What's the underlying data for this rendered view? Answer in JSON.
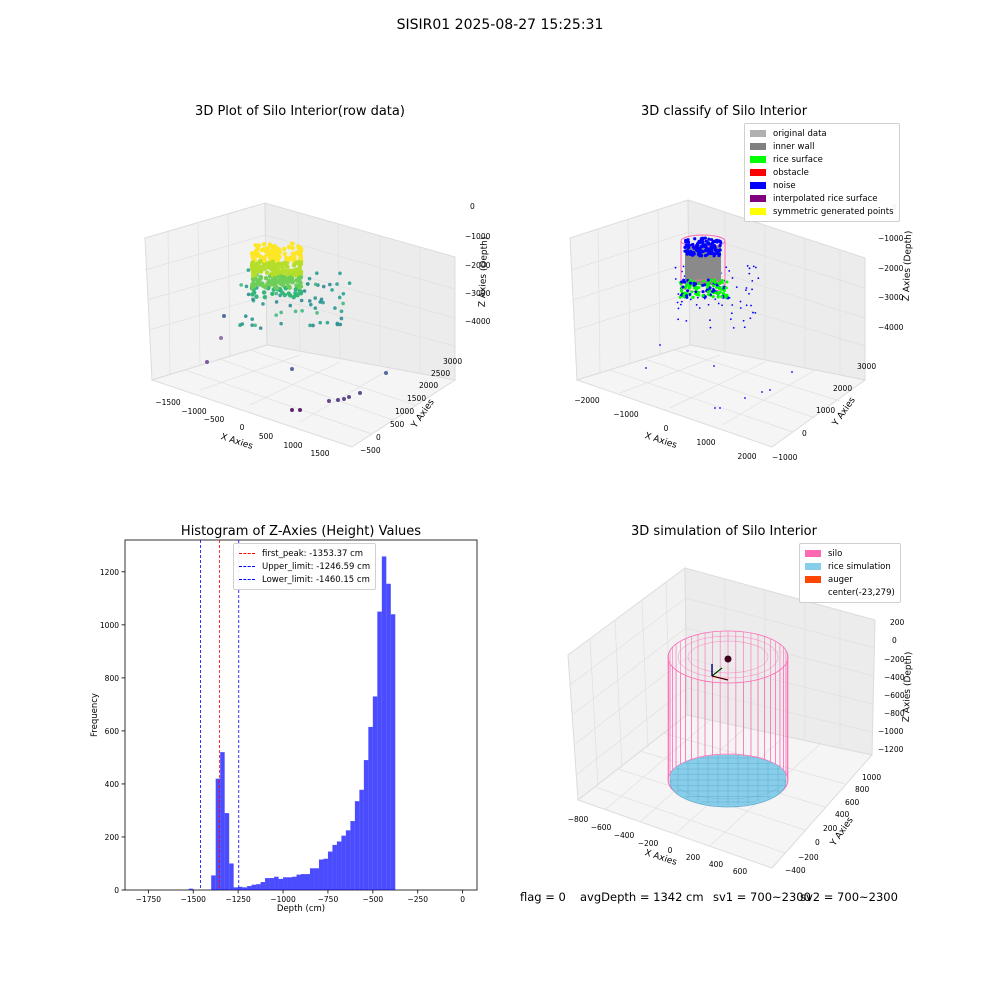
{
  "figure": {
    "suptitle": "SISIR01 2025-08-27 15:25:31"
  },
  "chart_data": [
    {
      "type": "scatter",
      "title": "3D Plot of Silo Interior(row data)",
      "xlabel": "X Axies",
      "ylabel": "Y Axies",
      "zlabel": "Z Axies (Depth)",
      "x_ticks": [
        "−1500",
        "−1000",
        "−500",
        "0",
        "500",
        "1000",
        "1500"
      ],
      "y_ticks": [
        "−500",
        "0",
        "500",
        "1000",
        "1500",
        "2000",
        "2500",
        "3000"
      ],
      "z_ticks": [
        "0",
        "−1000",
        "−2000",
        "−3000",
        "−4000"
      ],
      "colormap": "viridis"
    },
    {
      "type": "scatter",
      "title": "3D classify of Silo Interior",
      "xlabel": "X Axies",
      "ylabel": "Y Axies",
      "zlabel": "Z Axies (Depth)",
      "x_ticks": [
        "−2000",
        "−1000",
        "0",
        "1000",
        "2000"
      ],
      "y_ticks": [
        "−1000",
        "0",
        "1000",
        "2000",
        "3000"
      ],
      "z_ticks": [
        "0",
        "−1000",
        "−2000",
        "−3000",
        "−4000"
      ],
      "legend": [
        {
          "label": "original data",
          "color": "#b0b0b0"
        },
        {
          "label": "inner wall",
          "color": "#808080"
        },
        {
          "label": "rice surface",
          "color": "#00ff00"
        },
        {
          "label": "obstacle",
          "color": "#ff0000"
        },
        {
          "label": "noise",
          "color": "#0000ff"
        },
        {
          "label": "interpolated rice surface",
          "color": "#800080"
        },
        {
          "label": "symmetric generated points",
          "color": "#ffff00"
        }
      ]
    },
    {
      "type": "bar",
      "title": "Histogram of Z-Axies (Height) Values",
      "xlabel": "Depth (cm)",
      "ylabel": "Frequency",
      "xlim": [
        -1880,
        80
      ],
      "ylim": [
        0,
        1320
      ],
      "x_ticks": [
        -1750,
        -1500,
        -1250,
        -1000,
        -750,
        -500,
        -250,
        0
      ],
      "x_tick_labels": [
        "−1750",
        "−1500",
        "−1250",
        "−1000",
        "−750",
        "−500",
        "−250",
        "0"
      ],
      "y_ticks": [
        0,
        200,
        400,
        600,
        800,
        1000,
        1200
      ],
      "bin_width": 25,
      "bins": [
        [
          -1525,
          5
        ],
        [
          -1400,
          55
        ],
        [
          -1375,
          420
        ],
        [
          -1350,
          520
        ],
        [
          -1325,
          290
        ],
        [
          -1300,
          100
        ],
        [
          -1275,
          10
        ],
        [
          -1250,
          12
        ],
        [
          -1225,
          10
        ],
        [
          -1200,
          15
        ],
        [
          -1175,
          20
        ],
        [
          -1150,
          22
        ],
        [
          -1125,
          30
        ],
        [
          -1100,
          45
        ],
        [
          -1075,
          45
        ],
        [
          -1050,
          50
        ],
        [
          -1025,
          42
        ],
        [
          -1000,
          48
        ],
        [
          -975,
          48
        ],
        [
          -950,
          50
        ],
        [
          -925,
          58
        ],
        [
          -900,
          60
        ],
        [
          -875,
          60
        ],
        [
          -850,
          82
        ],
        [
          -825,
          82
        ],
        [
          -800,
          115
        ],
        [
          -775,
          118
        ],
        [
          -750,
          145
        ],
        [
          -725,
          170
        ],
        [
          -700,
          183
        ],
        [
          -675,
          205
        ],
        [
          -650,
          225
        ],
        [
          -625,
          260
        ],
        [
          -600,
          335
        ],
        [
          -575,
          378
        ],
        [
          -550,
          490
        ],
        [
          -525,
          615
        ],
        [
          -500,
          730
        ],
        [
          -475,
          1050
        ],
        [
          -450,
          1258
        ],
        [
          -425,
          1155
        ],
        [
          -400,
          1040
        ]
      ],
      "color": "#0000ff",
      "lines": [
        {
          "label": "first_peak: -1353.37 cm",
          "value": -1353.37,
          "color": "#ff0000"
        },
        {
          "label": "Upper_limit: -1246.59 cm",
          "value": -1246.59,
          "color": "#0000ff"
        },
        {
          "label": "Lower_limit: -1460.15 cm",
          "value": -1460.15,
          "color": "#0000ff"
        }
      ]
    },
    {
      "type": "scatter",
      "title": "3D simulation of Silo Interior",
      "xlabel": "X Axies",
      "ylabel": "Y Axies",
      "zlabel": "Z Axies (Depth)",
      "x_ticks": [
        "−800",
        "−600",
        "−400",
        "−200",
        "0",
        "200",
        "400",
        "600"
      ],
      "y_ticks": [
        "−400",
        "−200",
        "0",
        "200",
        "400",
        "600",
        "800",
        "1000"
      ],
      "z_ticks": [
        "200",
        "0",
        "−200",
        "−400",
        "−600",
        "−800",
        "−1000",
        "−1200"
      ],
      "legend": [
        {
          "label": "silo",
          "color": "#ff69b4"
        },
        {
          "label": "rice simulation",
          "color": "#87ceeb"
        },
        {
          "label": "auger",
          "color": "#ff4500"
        },
        {
          "label": "center(-23,279)",
          "color": ""
        }
      ]
    }
  ],
  "footer": {
    "flag": "flag = 0",
    "avg": "avgDepth = 1342 cm",
    "sv1": "sv1 = 700~2300",
    "sv2": "sv2 = 700~2300"
  }
}
